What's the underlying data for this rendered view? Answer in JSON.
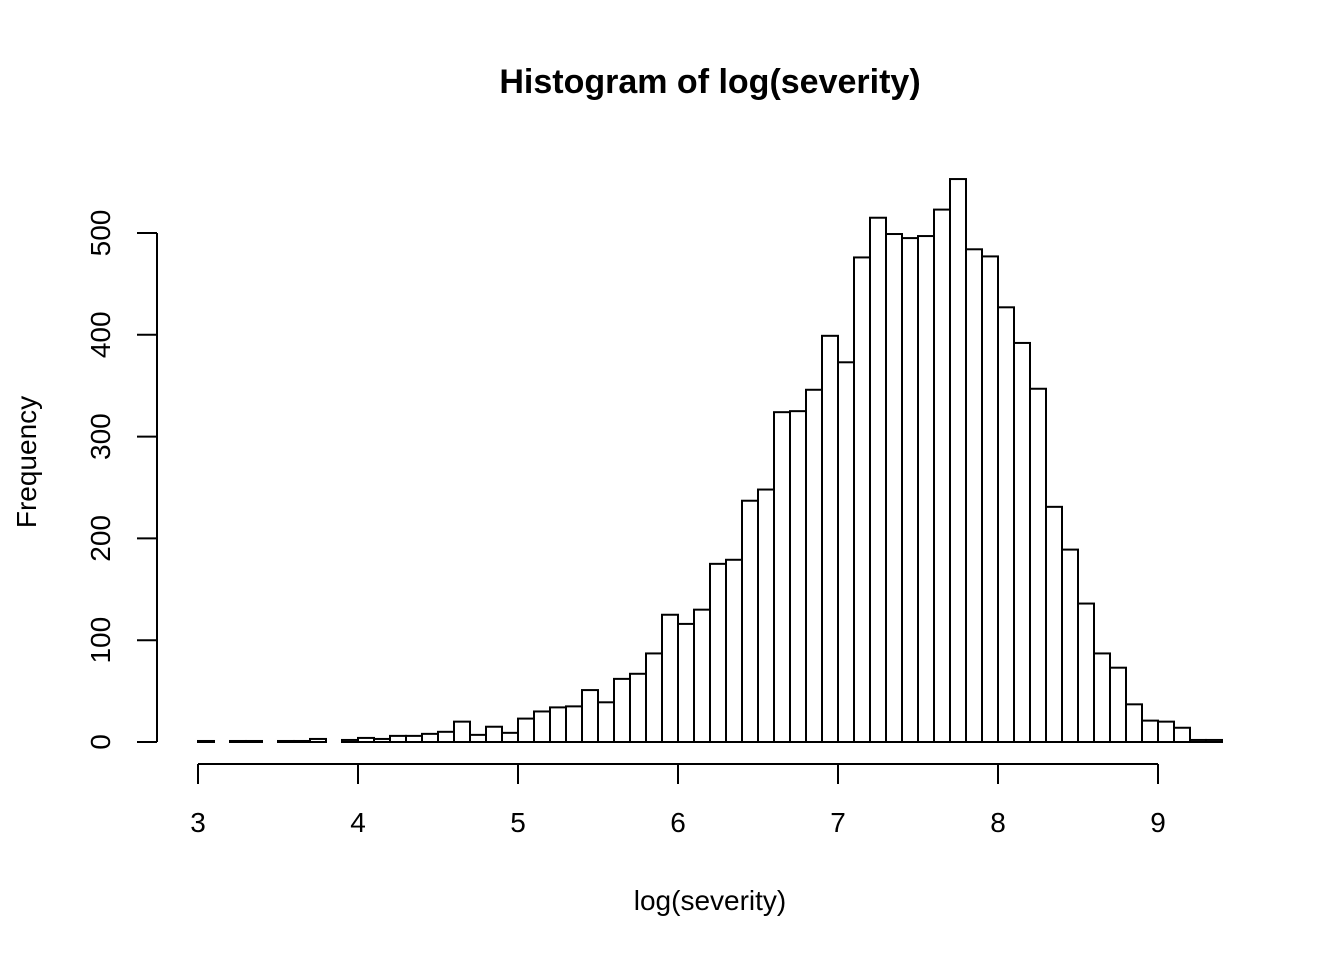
{
  "chart_data": {
    "type": "bar",
    "title": "Histogram of log(severity)",
    "xlabel": "log(severity)",
    "ylabel": "Frequency",
    "bin_width": 0.1,
    "bin_start": 3.0,
    "values": [
      1,
      0,
      1,
      1,
      0,
      1,
      1,
      3,
      0,
      2,
      4,
      3,
      6,
      6,
      8,
      10,
      20,
      7,
      15,
      9,
      23,
      30,
      34,
      35,
      51,
      39,
      62,
      67,
      87,
      125,
      116,
      130,
      175,
      179,
      237,
      248,
      324,
      325,
      346,
      399,
      373,
      476,
      515,
      499,
      495,
      497,
      523,
      553,
      484,
      477,
      427,
      392,
      347,
      231,
      189,
      136,
      87,
      73,
      37,
      21,
      20,
      14,
      2,
      2
    ],
    "xlim": [
      3,
      9.4
    ],
    "ylim": [
      0,
      553
    ],
    "x_ticks": [
      "3",
      "4",
      "5",
      "6",
      "7",
      "8",
      "9"
    ],
    "y_ticks": [
      "0",
      "100",
      "200",
      "300",
      "400",
      "500"
    ],
    "colors": {
      "bar_fill": "#ffffff",
      "bar_stroke": "#000000",
      "background": "#ffffff"
    },
    "grid": false,
    "legend": "none"
  }
}
